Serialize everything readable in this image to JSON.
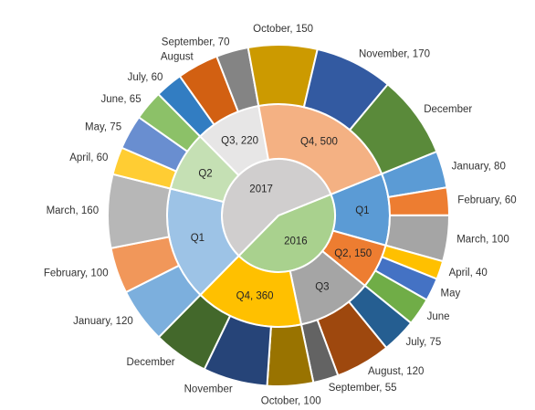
{
  "chart_data": {
    "type": "sunburst",
    "title": "",
    "rings": [
      "year",
      "quarter",
      "month"
    ],
    "years": [
      {
        "label": "2016",
        "color": "#A9D18E",
        "quarters": [
          {
            "label": "Q1",
            "color": "#5B9BD5",
            "months": [
              {
                "label": "January, 80",
                "value": 80,
                "color": "#5B9BD5"
              },
              {
                "label": "February, 60",
                "value": 60,
                "color": "#ED7D31"
              },
              {
                "label": "March, 100",
                "value": 100,
                "color": "#A5A5A5"
              }
            ]
          },
          {
            "label": "Q2, 150",
            "value": 150,
            "color": "#ED7D31",
            "months": [
              {
                "label": "April, 40",
                "value": 40,
                "color": "#FFC000"
              },
              {
                "label": "May",
                "value": 50,
                "color": "#4472C4"
              },
              {
                "label": "June",
                "value": 60,
                "color": "#70AD47"
              }
            ]
          },
          {
            "label": "Q3",
            "color": "#A5A5A5",
            "months": [
              {
                "label": "July, 75",
                "value": 75,
                "color": "#255E91"
              },
              {
                "label": "August, 120",
                "value": 120,
                "color": "#9E480E"
              },
              {
                "label": "September, 55",
                "value": 55,
                "color": "#636363"
              }
            ]
          },
          {
            "label": "Q4, 360",
            "value": 360,
            "color": "#FFC000",
            "months": [
              {
                "label": "October, 100",
                "value": 100,
                "color": "#997300"
              },
              {
                "label": "November",
                "value": 140,
                "color": "#264478"
              },
              {
                "label": "December",
                "value": 120,
                "color": "#43682B"
              }
            ]
          }
        ]
      },
      {
        "label": "2017",
        "color": "#D0CECE",
        "quarters": [
          {
            "label": "Q1",
            "color": "#9DC3E6",
            "months": [
              {
                "label": "January, 120",
                "value": 120,
                "color": "#7CAFDD"
              },
              {
                "label": "February, 100",
                "value": 100,
                "color": "#F1975A"
              },
              {
                "label": "March, 160",
                "value": 160,
                "color": "#B7B7B7"
              }
            ]
          },
          {
            "label": "Q2",
            "color": "#C5E0B4",
            "months": [
              {
                "label": "April, 60",
                "value": 60,
                "color": "#FFCD33"
              },
              {
                "label": "May, 75",
                "value": 75,
                "color": "#698ED0"
              },
              {
                "label": "June, 65",
                "value": 65,
                "color": "#8CC168"
              }
            ]
          },
          {
            "label": "Q3, 220",
            "value": 220,
            "color": "#E7E6E6",
            "months": [
              {
                "label": "July, 60",
                "value": 60,
                "color": "#327DC2"
              },
              {
                "label": "August",
                "value": 90,
                "color": "#D26012"
              },
              {
                "label": "September, 70",
                "value": 70,
                "color": "#848484"
              }
            ]
          },
          {
            "label": "Q4, 500",
            "value": 500,
            "color": "#F4B183",
            "months": [
              {
                "label": "October, 150",
                "value": 150,
                "color": "#CC9A00"
              },
              {
                "label": "November, 170",
                "value": 170,
                "color": "#335AA1"
              },
              {
                "label": "December",
                "value": 180,
                "color": "#5A8A3A"
              }
            ]
          }
        ]
      }
    ],
    "legend": "none"
  }
}
